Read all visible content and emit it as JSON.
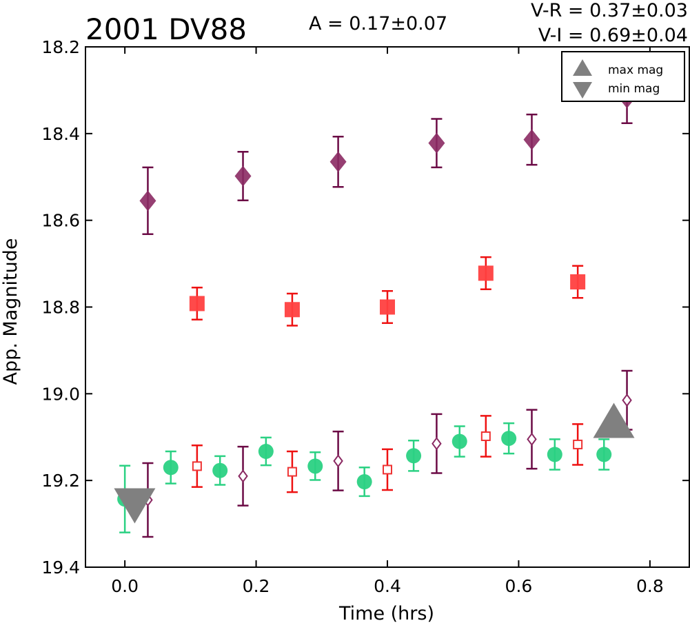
{
  "chart_data": {
    "type": "scatter",
    "title": "2001 DV88",
    "annotations": {
      "amplitude": "A  = 0.17±0.07",
      "v_r": "V-R = 0.37±0.03",
      "v_i": "V-I  = 0.69±0.04"
    },
    "xlabel": "Time (hrs)",
    "ylabel": "App. Magnitude",
    "xlim": [
      -0.06,
      0.86
    ],
    "ylim": [
      19.4,
      18.2
    ],
    "y_inverted": true,
    "xticks": [
      "0.0",
      "0.2",
      "0.4",
      "0.6",
      "0.8"
    ],
    "yticks": [
      "18.2",
      "18.4",
      "18.6",
      "18.8",
      "19.0",
      "19.2",
      "19.4"
    ],
    "grid": false,
    "legend_position": "top-right",
    "legend": [
      {
        "label": "max mag",
        "marker": "triangle-up"
      },
      {
        "label": "min mag",
        "marker": "triangle-down"
      }
    ],
    "series": [
      {
        "marker": "diamond-filled",
        "color": "#8b2a63",
        "ecolor": "#6b0a45",
        "x": [
          0.035,
          0.18,
          0.325,
          0.475,
          0.62,
          0.765
        ],
        "y": [
          18.555,
          18.498,
          18.465,
          18.422,
          18.414,
          18.318
        ],
        "err": [
          0.077,
          0.056,
          0.058,
          0.056,
          0.058,
          0.058
        ]
      },
      {
        "marker": "square-filled",
        "color": "#ff4040",
        "ecolor": "#ee1111",
        "x": [
          0.11,
          0.255,
          0.4,
          0.55,
          0.69
        ],
        "y": [
          18.792,
          18.806,
          18.8,
          18.722,
          18.742
        ],
        "err": [
          0.037,
          0.037,
          0.037,
          0.037,
          0.037
        ]
      },
      {
        "marker": "circle",
        "color": "#2bd183",
        "ecolor": "#2bd183",
        "x": [
          0.0,
          0.07,
          0.145,
          0.215,
          0.29,
          0.365,
          0.44,
          0.51,
          0.585,
          0.655,
          0.73
        ],
        "y": [
          19.243,
          19.17,
          19.177,
          19.133,
          19.167,
          19.203,
          19.143,
          19.11,
          19.103,
          19.14,
          19.14
        ],
        "err": [
          0.077,
          0.037,
          0.033,
          0.032,
          0.032,
          0.033,
          0.035,
          0.035,
          0.035,
          0.035,
          0.035
        ]
      },
      {
        "marker": "square-open",
        "color": "#ee3333",
        "ecolor": "#ee1111",
        "x": [
          0.11,
          0.255,
          0.4,
          0.55,
          0.69
        ],
        "y": [
          19.167,
          19.18,
          19.175,
          19.098,
          19.117
        ],
        "err": [
          0.048,
          0.047,
          0.047,
          0.047,
          0.047
        ]
      },
      {
        "marker": "diamond-open",
        "color": "#8b2a63",
        "ecolor": "#6b0a45",
        "x": [
          0.035,
          0.18,
          0.325,
          0.475,
          0.62,
          0.765
        ],
        "y": [
          19.245,
          19.19,
          19.155,
          19.115,
          19.105,
          19.015
        ],
        "err": [
          0.085,
          0.068,
          0.068,
          0.068,
          0.068,
          0.068
        ]
      },
      {
        "marker": "triangle-up",
        "color": "#808080",
        "x": [
          0.745
        ],
        "y": [
          19.075
        ]
      },
      {
        "marker": "triangle-down",
        "color": "#808080",
        "x": [
          0.015
        ],
        "y": [
          19.245
        ]
      }
    ]
  }
}
